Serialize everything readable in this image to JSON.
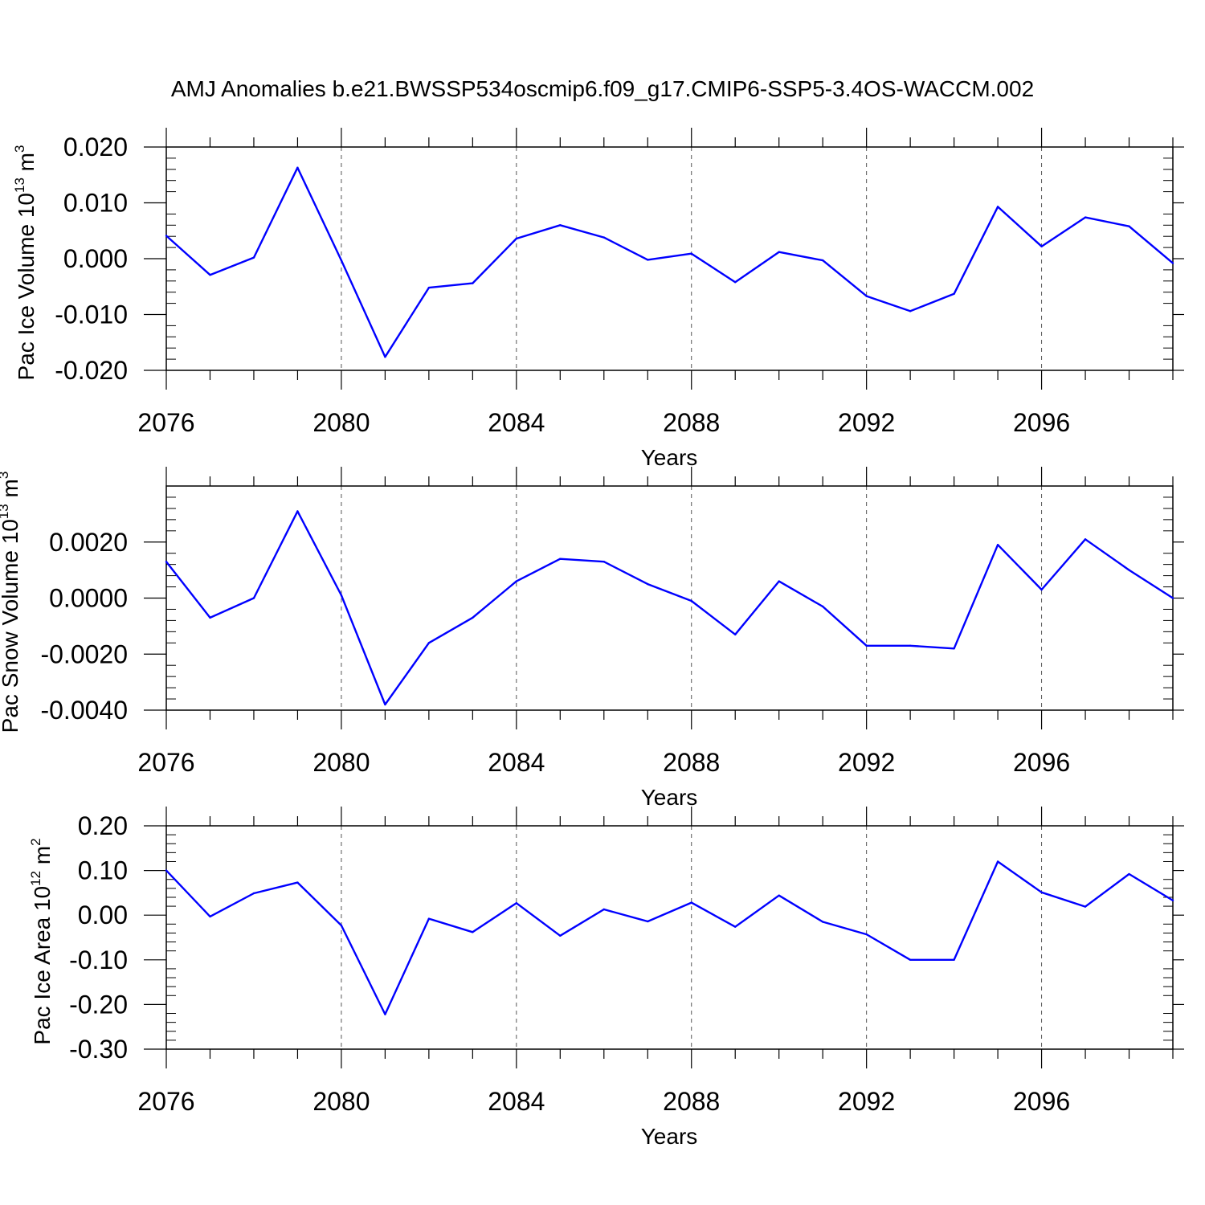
{
  "title": "AMJ Anomalies b.e21.BWSSP534oscmip6.f09_g17.CMIP6-SSP5-3.4OS-WACCM.002",
  "colors": {
    "line": "#0000ff",
    "axis": "#000000",
    "grid": "#555555"
  },
  "chart_data": [
    {
      "type": "line",
      "ylabel": "Pac Ice Volume 10",
      "ylabel_exp": "13",
      "ylabel_unit": " m",
      "ylabel_unit_exp": "3",
      "xlabel": "Years",
      "xlim": [
        2076,
        2099
      ],
      "ylim": [
        -0.02,
        0.02
      ],
      "yticks": [
        -0.02,
        -0.01,
        0.0,
        0.01,
        0.02
      ],
      "ytick_labels": [
        "-0.020",
        "-0.010",
        "0.000",
        "0.010",
        "0.020"
      ],
      "xticks": [
        2076,
        2080,
        2084,
        2088,
        2092,
        2096
      ],
      "xtick_labels": [
        "2076",
        "2080",
        "2084",
        "2088",
        "2092",
        "2096"
      ],
      "grid": "vertical dashed at major x ticks",
      "x": [
        2076,
        2077,
        2078,
        2079,
        2080,
        2081,
        2082,
        2083,
        2084,
        2085,
        2086,
        2087,
        2088,
        2089,
        2090,
        2091,
        2092,
        2093,
        2094,
        2095,
        2096,
        2097,
        2098,
        2099
      ],
      "values": [
        0.0041,
        -0.0029,
        0.0002,
        0.0163,
        -0.0003,
        -0.0176,
        -0.0052,
        -0.0044,
        0.0036,
        0.006,
        0.0038,
        -0.0002,
        0.0009,
        -0.0042,
        0.0012,
        -0.0003,
        -0.0067,
        -0.0094,
        -0.0063,
        0.0093,
        0.0022,
        0.0074,
        0.0058,
        -0.0008
      ]
    },
    {
      "type": "line",
      "ylabel": "Pac Snow Volume 10",
      "ylabel_exp": "13",
      "ylabel_unit": " m",
      "ylabel_unit_exp": "3",
      "xlabel": "Years",
      "xlim": [
        2076,
        2099
      ],
      "ylim": [
        -0.004,
        0.004
      ],
      "yticks": [
        -0.004,
        -0.002,
        0.0,
        0.002
      ],
      "ytick_labels": [
        "-0.0040",
        "-0.0020",
        "0.0000",
        "0.0020"
      ],
      "xticks": [
        2076,
        2080,
        2084,
        2088,
        2092,
        2096
      ],
      "xtick_labels": [
        "2076",
        "2080",
        "2084",
        "2088",
        "2092",
        "2096"
      ],
      "grid": "vertical dashed at major x ticks",
      "x": [
        2076,
        2077,
        2078,
        2079,
        2080,
        2081,
        2082,
        2083,
        2084,
        2085,
        2086,
        2087,
        2088,
        2089,
        2090,
        2091,
        2092,
        2093,
        2094,
        2095,
        2096,
        2097,
        2098,
        2099
      ],
      "values": [
        0.0013,
        -0.0007,
        0.0,
        0.0031,
        0.0001,
        -0.0038,
        -0.0016,
        -0.0007,
        0.0006,
        0.0014,
        0.0013,
        0.0005,
        -0.0001,
        -0.0013,
        0.0006,
        -0.0003,
        -0.0017,
        -0.0017,
        -0.0018,
        0.0019,
        0.0003,
        0.0021,
        0.001,
        0.0
      ]
    },
    {
      "type": "line",
      "ylabel": "Pac Ice Area 10",
      "ylabel_exp": "12",
      "ylabel_unit": " m",
      "ylabel_unit_exp": "2",
      "xlabel": "Years",
      "xlim": [
        2076,
        2099
      ],
      "ylim": [
        -0.3,
        0.2
      ],
      "yticks": [
        -0.3,
        -0.2,
        -0.1,
        0.0,
        0.1,
        0.2
      ],
      "ytick_labels": [
        "-0.30",
        "-0.20",
        "-0.10",
        "0.00",
        "0.10",
        "0.20"
      ],
      "xticks": [
        2076,
        2080,
        2084,
        2088,
        2092,
        2096
      ],
      "xtick_labels": [
        "2076",
        "2080",
        "2084",
        "2088",
        "2092",
        "2096"
      ],
      "grid": "vertical dashed at major x ticks",
      "x": [
        2076,
        2077,
        2078,
        2079,
        2080,
        2081,
        2082,
        2083,
        2084,
        2085,
        2086,
        2087,
        2088,
        2089,
        2090,
        2091,
        2092,
        2093,
        2094,
        2095,
        2096,
        2097,
        2098,
        2099
      ],
      "values": [
        0.1,
        -0.003,
        0.049,
        0.073,
        -0.023,
        -0.222,
        -0.008,
        -0.038,
        0.027,
        -0.046,
        0.013,
        -0.014,
        0.028,
        -0.026,
        0.044,
        -0.015,
        -0.043,
        -0.1,
        -0.1,
        0.12,
        0.051,
        0.019,
        0.092,
        0.033
      ]
    }
  ]
}
